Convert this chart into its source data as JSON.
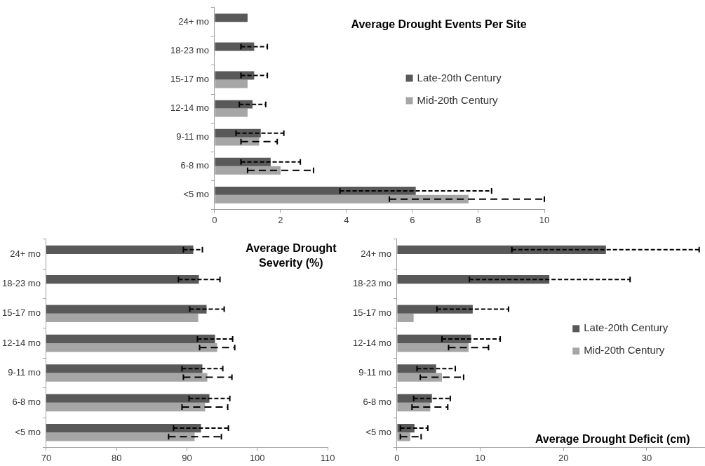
{
  "chart_data": [
    {
      "type": "bar",
      "orientation": "horizontal",
      "title": "Average Drought Events Per Site",
      "categories": [
        "24+ mo",
        "18-23 mo",
        "15-17 mo",
        "12-14 mo",
        "9-11 mo",
        "6-8 mo",
        "<5 mo"
      ],
      "xlim": [
        0,
        10
      ],
      "xticks": [
        0,
        2,
        4,
        6,
        8,
        10
      ],
      "grid": false,
      "legend": "right",
      "series": [
        {
          "name": "Late-20th Century",
          "color": "#595959",
          "values": [
            1.0,
            1.2,
            1.2,
            1.15,
            1.4,
            1.7,
            6.1
          ],
          "errors": [
            null,
            [
              0.8,
              1.6
            ],
            [
              0.8,
              1.6
            ],
            [
              0.75,
              1.55
            ],
            [
              0.65,
              2.1
            ],
            [
              0.8,
              2.6
            ],
            [
              3.8,
              8.4
            ]
          ]
        },
        {
          "name": "Mid-20th Century",
          "color": "#a6a6a6",
          "values": [
            0,
            0,
            1.0,
            1.0,
            1.35,
            2.0,
            7.7
          ],
          "errors": [
            null,
            null,
            null,
            null,
            [
              0.8,
              1.9
            ],
            [
              1.0,
              3.0
            ],
            [
              5.3,
              10.0
            ]
          ]
        }
      ]
    },
    {
      "type": "bar",
      "orientation": "horizontal",
      "title": "Average Drought Severity (%)",
      "categories": [
        "24+ mo",
        "18-23 mo",
        "15-17 mo",
        "12-14 mo",
        "9-11 mo",
        "6-8 mo",
        "<5 mo"
      ],
      "xlim": [
        70,
        110
      ],
      "xticks": [
        70,
        80,
        90,
        100,
        110
      ],
      "grid": false,
      "series": [
        {
          "color": "#595959",
          "values": [
            90.9,
            91.7,
            92.8,
            94.0,
            92.2,
            93.2,
            92.0
          ],
          "errors": [
            [
              89.5,
              92.2
            ],
            [
              88.8,
              94.7
            ],
            [
              90.4,
              95.3
            ],
            [
              91.5,
              96.5
            ],
            [
              89.3,
              95.1
            ],
            [
              90.3,
              96.1
            ],
            [
              88.1,
              95.9
            ]
          ]
        },
        {
          "color": "#a6a6a6",
          "values": [
            null,
            null,
            91.6,
            94.3,
            92.9,
            92.6,
            91.1
          ],
          "errors": [
            null,
            null,
            null,
            [
              91.8,
              96.8
            ],
            [
              89.5,
              96.4
            ],
            [
              89.3,
              95.8
            ],
            [
              87.4,
              94.9
            ]
          ]
        }
      ]
    },
    {
      "type": "bar",
      "orientation": "horizontal",
      "title": "Average Drought Deficit (cm)",
      "categories": [
        "24+ mo",
        "18-23 mo",
        "15-17 mo",
        "12-14 mo",
        "9-11 mo",
        "6-8 mo",
        "<5 mo"
      ],
      "xlim": [
        0,
        37
      ],
      "xticks": [
        0,
        10,
        20,
        30
      ],
      "grid": false,
      "legend": "right",
      "series": [
        {
          "name": "Late-20th Century",
          "color": "#595959",
          "values": [
            25.1,
            18.3,
            9.1,
            8.9,
            4.7,
            4.2,
            2.1
          ],
          "errors": [
            [
              13.8,
              36.3
            ],
            [
              8.7,
              28.0
            ],
            [
              4.8,
              13.4
            ],
            [
              5.4,
              12.4
            ],
            [
              2.4,
              7.0
            ],
            [
              2.0,
              6.4
            ],
            [
              0.4,
              3.7
            ]
          ]
        },
        {
          "name": "Mid-20th Century",
          "color": "#a6a6a6",
          "values": [
            0,
            0,
            2.0,
            8.6,
            5.4,
            4.0,
            1.6
          ],
          "errors": [
            null,
            null,
            null,
            [
              6.2,
              11.0
            ],
            [
              2.8,
              8.0
            ],
            [
              1.8,
              6.1
            ],
            [
              0.4,
              2.9
            ]
          ]
        }
      ]
    }
  ]
}
